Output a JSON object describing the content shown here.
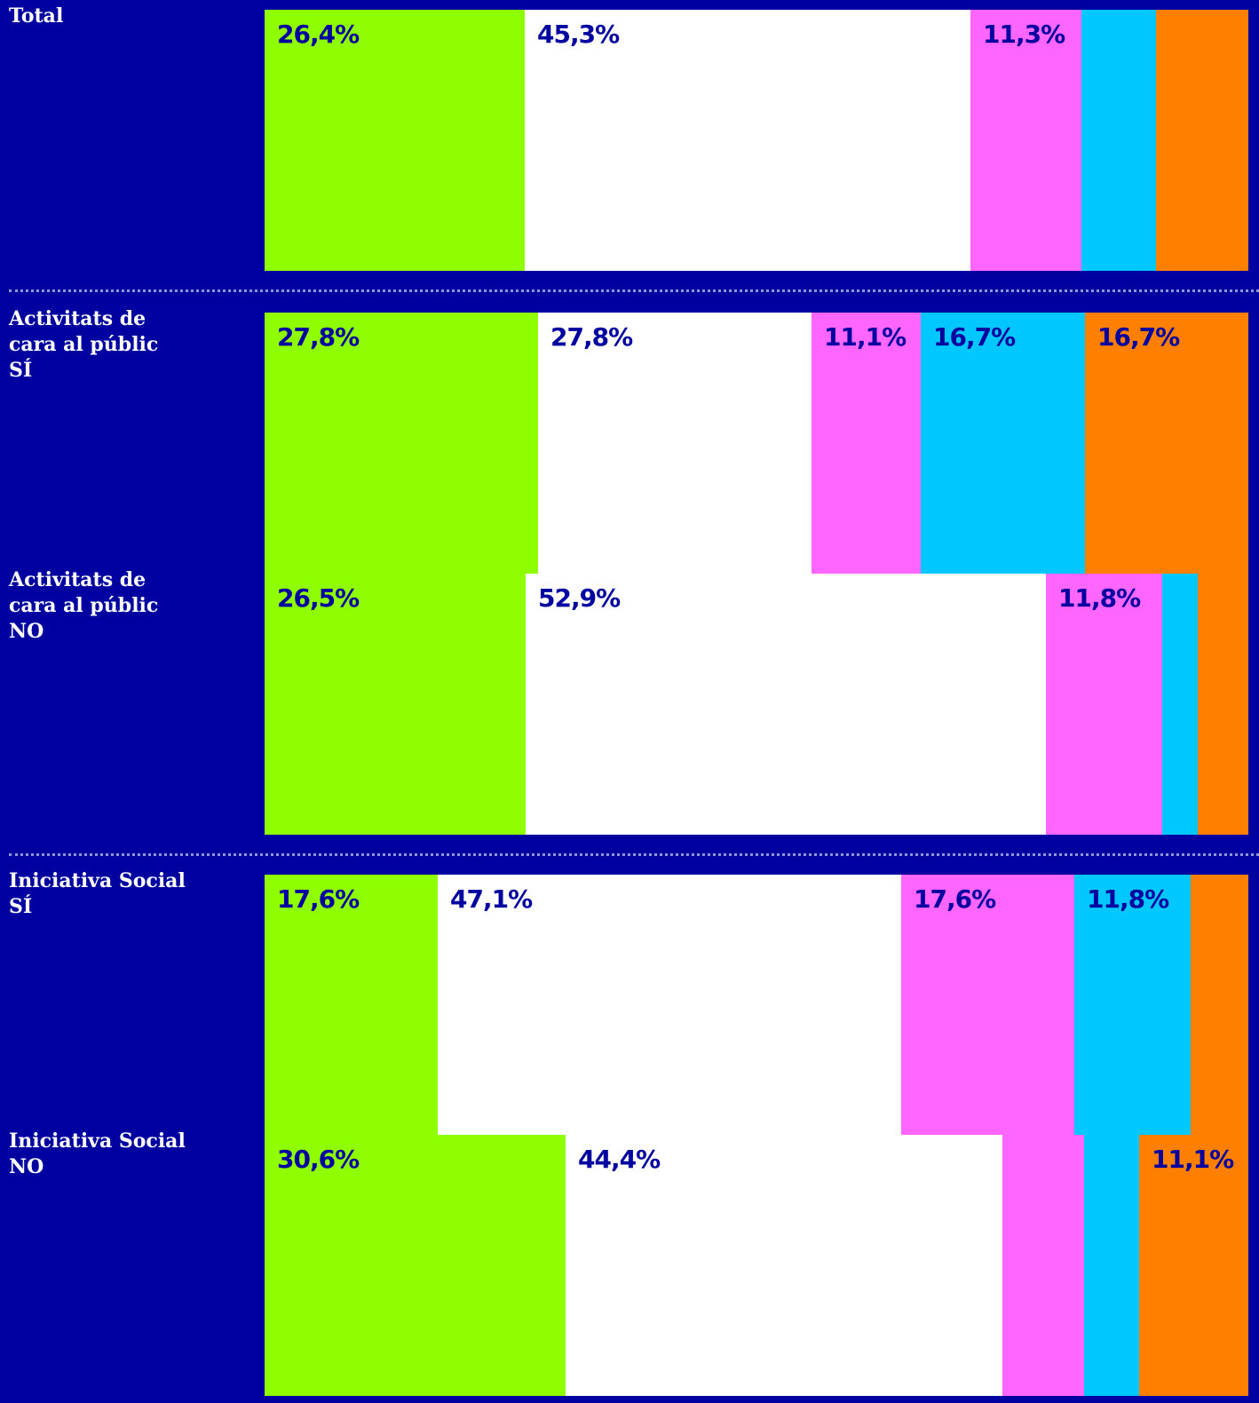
{
  "chart_data": {
    "type": "bar",
    "orientation": "horizontal",
    "stacked": true,
    "normalized": true,
    "categories": [
      "Total",
      "Activitats de\ncara al públic\nSÍ",
      "Activitats de\ncara al públic\nNO",
      "Iniciativa Social\nSÍ",
      "Iniciativa Social\nNO"
    ],
    "series": [
      {
        "color": "#8fff00",
        "values": [
          26.4,
          27.8,
          26.5,
          17.6,
          30.6
        ]
      },
      {
        "color": "#ffffff",
        "values": [
          45.3,
          27.8,
          52.9,
          47.1,
          44.4
        ]
      },
      {
        "color": "#ff66ff",
        "values": [
          11.3,
          11.1,
          11.8,
          17.6,
          8.3
        ]
      },
      {
        "color": "#00c8ff",
        "values": [
          7.6,
          16.7,
          3.6,
          11.8,
          5.6
        ]
      },
      {
        "color": "#ff8000",
        "values": [
          9.4,
          16.7,
          5.2,
          5.9,
          11.1
        ]
      }
    ],
    "data_labels": [
      [
        "26,4%",
        "45,3%",
        "11,3%",
        "",
        ""
      ],
      [
        "27,8%",
        "27,8%",
        "11,1%",
        "16,7%",
        "16,7%"
      ],
      [
        "26,5%",
        "52,9%",
        "11,8%",
        "",
        ""
      ],
      [
        "17,6%",
        "47,1%",
        "17,6%",
        "11,8%",
        ""
      ],
      [
        "30,6%",
        "44,4%",
        "",
        "",
        "11,1%"
      ]
    ],
    "xlim": [
      0,
      100
    ],
    "grid": false,
    "legend": "none",
    "group_dividers_after": [
      0,
      2
    ]
  },
  "colors": {
    "background": "#0000a0",
    "label_text": "#ffffff",
    "value_text": "#0000a0",
    "divider": "#8f95d6"
  }
}
